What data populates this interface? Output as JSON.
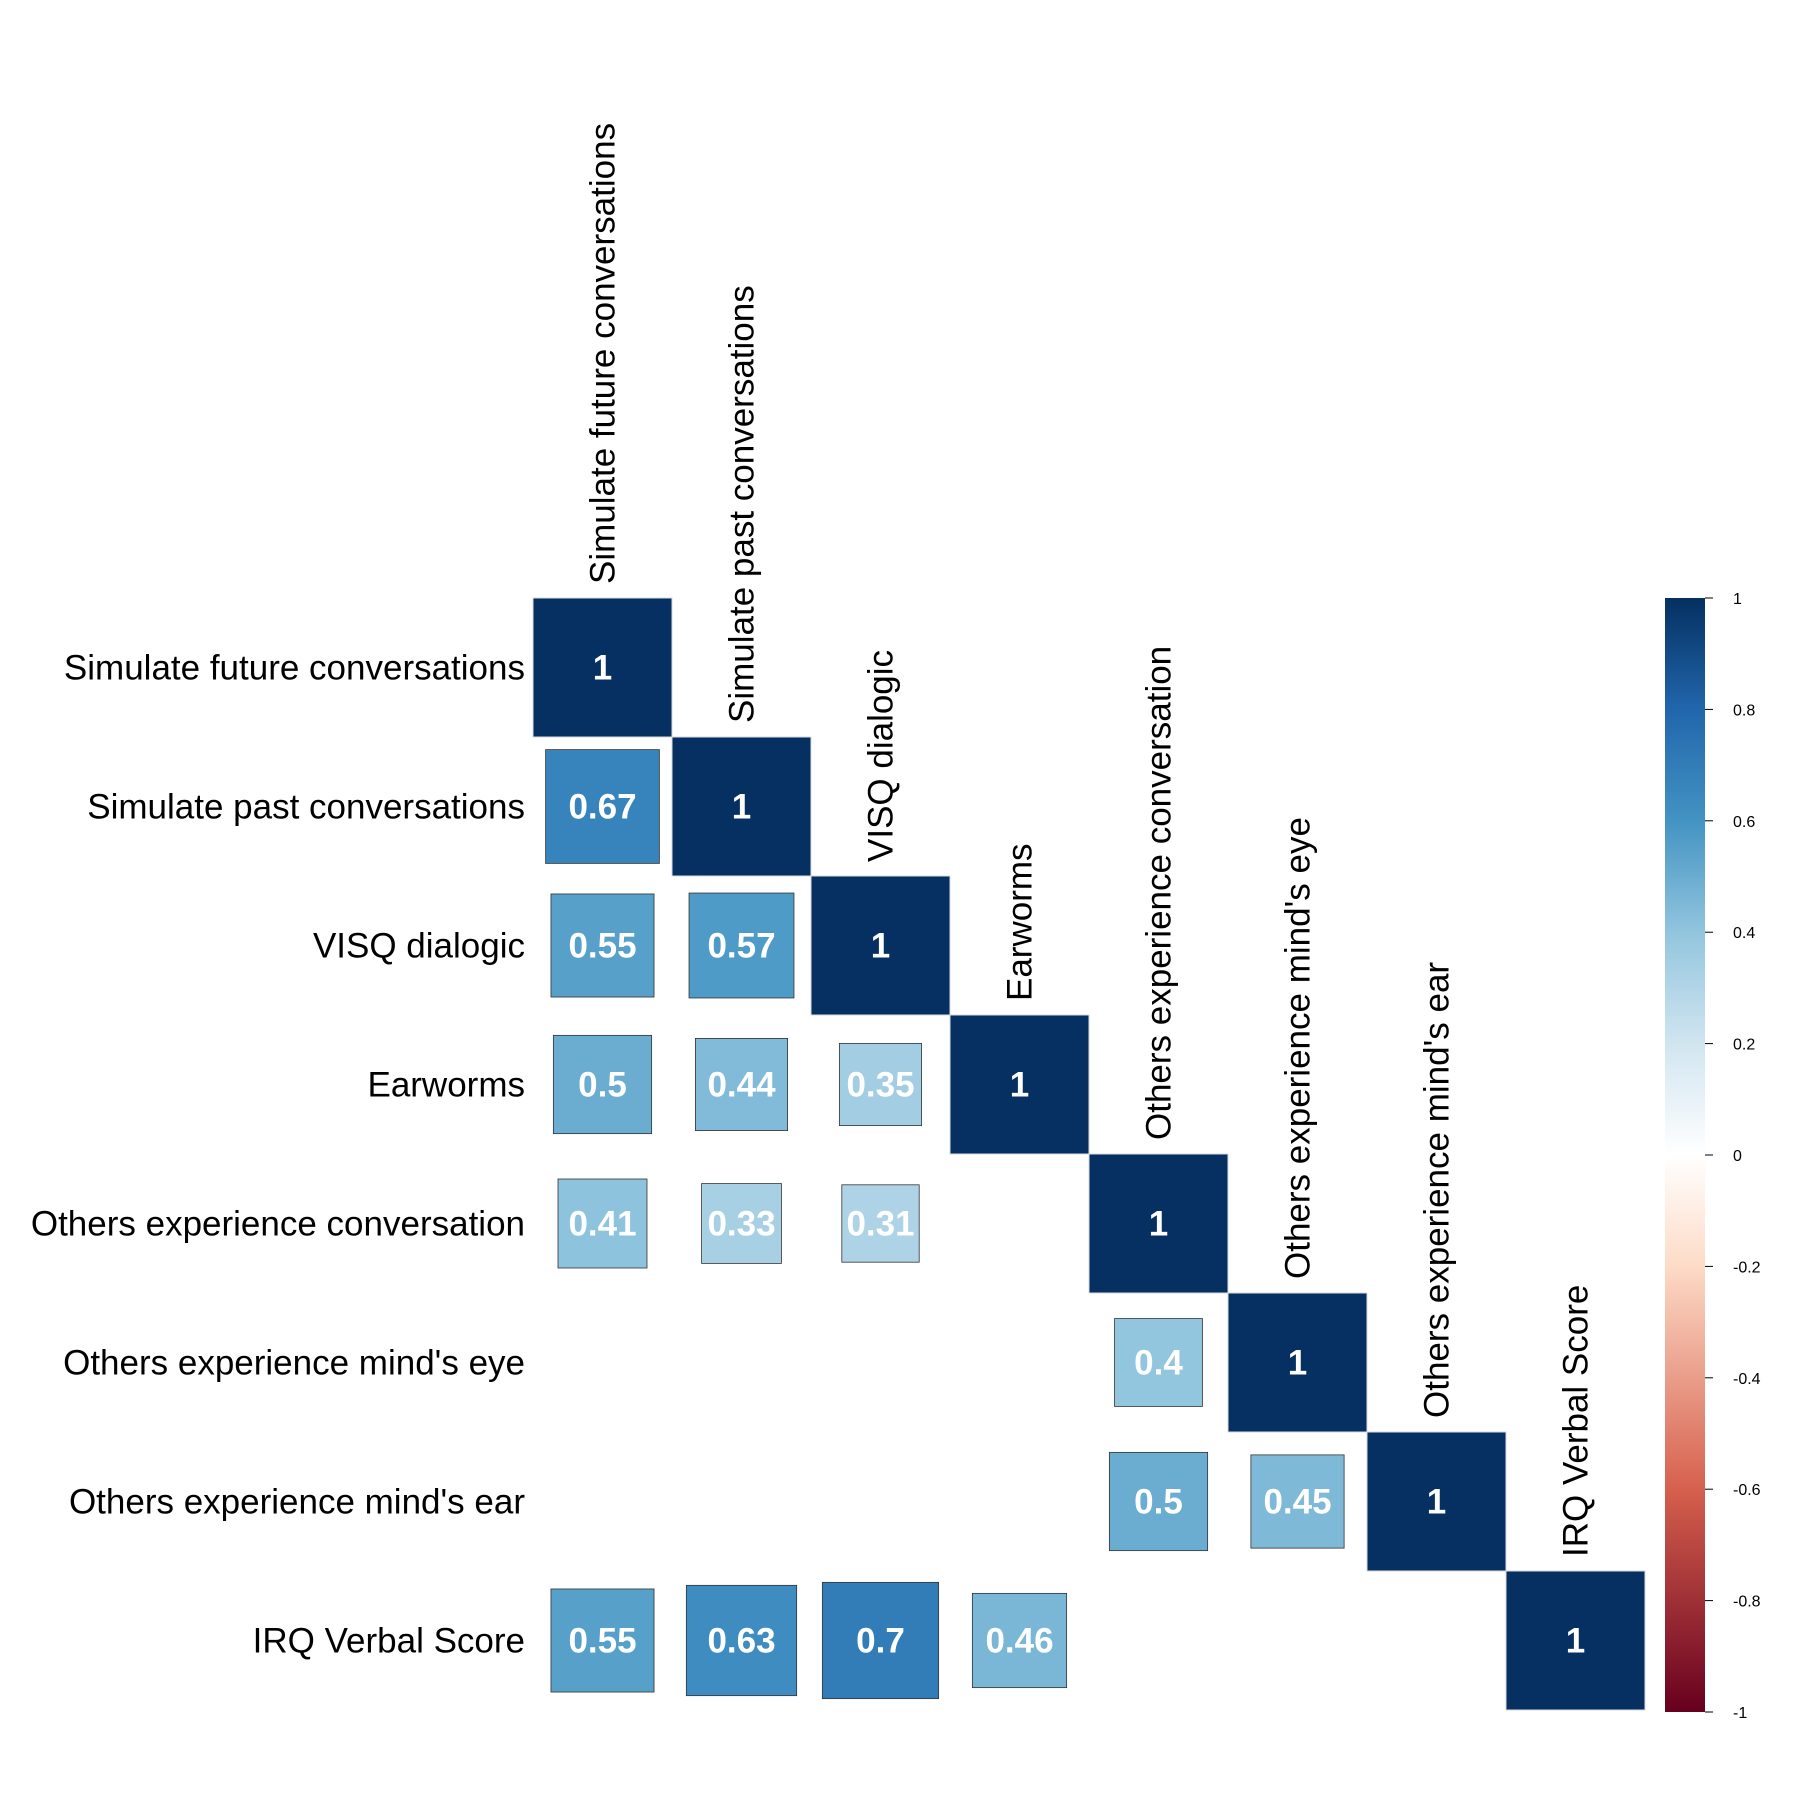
{
  "chart_data": {
    "type": "heatmap",
    "subtype": "correlation-matrix-lower-triangle",
    "variables": [
      "Simulate future conversations",
      "Simulate past conversations",
      "VISQ dialogic",
      "Earworms",
      "Others experience conversation",
      "Others experience mind's eye",
      "Others experience mind's ear",
      "IRQ Verbal Score"
    ],
    "matrix": [
      [
        1,
        null,
        null,
        null,
        null,
        null,
        null,
        null
      ],
      [
        0.67,
        1,
        null,
        null,
        null,
        null,
        null,
        null
      ],
      [
        0.55,
        0.57,
        1,
        null,
        null,
        null,
        null,
        null
      ],
      [
        0.5,
        0.44,
        0.35,
        1,
        null,
        null,
        null,
        null
      ],
      [
        0.41,
        0.33,
        0.31,
        null,
        1,
        null,
        null,
        null
      ],
      [
        null,
        null,
        null,
        null,
        0.4,
        1,
        null,
        null
      ],
      [
        null,
        null,
        null,
        null,
        0.5,
        0.45,
        1,
        null
      ],
      [
        0.55,
        0.63,
        0.7,
        0.46,
        null,
        null,
        null,
        1
      ]
    ],
    "cell_shape": "square sized by |r|",
    "colorbar": {
      "range": [
        -1,
        1
      ],
      "ticks": [
        "1",
        "0.8",
        "0.6",
        "0.4",
        "0.2",
        "0",
        "-0.2",
        "-0.4",
        "-0.6",
        "-0.8",
        "-1"
      ],
      "colors": {
        "-1": "#67001f",
        "-0.6": "#d6604d",
        "-0.2": "#fddbc7",
        "0": "#ffffff",
        "0.2": "#d1e5f0",
        "0.4": "#92c5de",
        "0.6": "#4393c3",
        "0.8": "#2166ac",
        "1": "#053061"
      }
    },
    "label_color": "#ffffff",
    "grid": false,
    "legend_position": "right"
  }
}
